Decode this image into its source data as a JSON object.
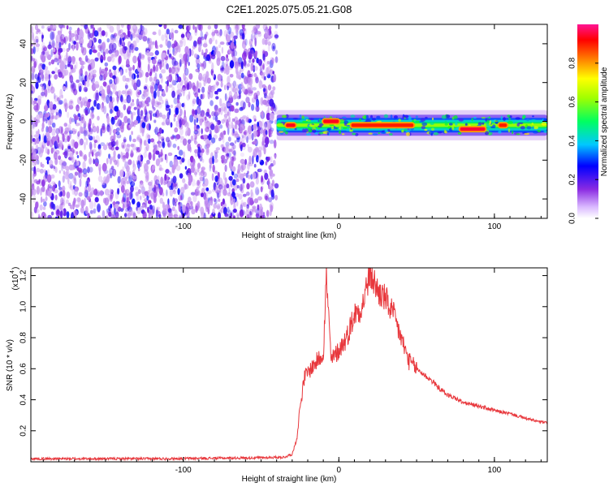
{
  "title": "C2E1.2025.075.05.21.G08",
  "chart_data": [
    {
      "type": "heatmap",
      "xlabel": "Height of straight line (km)",
      "ylabel": "Frequency (Hz)",
      "xlim": [
        -198,
        134
      ],
      "ylim": [
        -50,
        50
      ],
      "xticks": [
        -100,
        0,
        100
      ],
      "xtick_labels": [
        "-100",
        "0",
        "100"
      ],
      "yticks": [
        -40,
        -20,
        0,
        20,
        40
      ],
      "ytick_labels": [
        "-40",
        "-20",
        "0",
        "20",
        "40"
      ],
      "colorbar": {
        "label": "Normalized spectral amplitude",
        "ticks": [
          0.0,
          0.2,
          0.4,
          0.6,
          0.8
        ],
        "tick_labels": [
          "0.0",
          "0.2",
          "0.4",
          "0.6",
          "0.8"
        ],
        "colormap": [
          "#ffffff",
          "#8a2be2",
          "#0000ff",
          "#00c8ff",
          "#00ff00",
          "#ffff00",
          "#ff8000",
          "#ff0000",
          "#ff1493"
        ]
      },
      "noise_region": {
        "x_range": [
          -198,
          -40
        ],
        "y_range": [
          -50,
          50
        ],
        "level": [
          0.05,
          0.25
        ]
      },
      "signal_band": {
        "x_range": [
          -40,
          134
        ],
        "center_freq": -2,
        "halfwidth": 3,
        "level": 0.45
      },
      "hot_spots": [
        {
          "x_range": [
            -34,
            -28
          ],
          "y": -2,
          "level": 0.9
        },
        {
          "x_range": [
            -10,
            0
          ],
          "y": 0,
          "level": 0.9
        },
        {
          "x_range": [
            8,
            48
          ],
          "y": -2,
          "level": 0.85
        },
        {
          "x_range": [
            78,
            94
          ],
          "y": -4,
          "level": 0.92
        },
        {
          "x_range": [
            103,
            108
          ],
          "y": -2,
          "level": 0.85
        }
      ]
    },
    {
      "type": "line",
      "xlabel": "Height of straight line (km)",
      "ylabel": "SNR (10 * v/v)",
      "yscale_note": "(x10",
      "yscale_exp": "4",
      "xlim": [
        -198,
        134
      ],
      "ylim": [
        0,
        1.25
      ],
      "xticks": [
        -100,
        0,
        100
      ],
      "xtick_labels": [
        "-100",
        "0",
        "100"
      ],
      "yticks": [
        0.2,
        0.4,
        0.6,
        0.8,
        1.0,
        1.2
      ],
      "ytick_labels": [
        "0.2",
        "0.4",
        "0.6",
        "0.8",
        "1.0",
        "1.2"
      ],
      "series": [
        {
          "color": "#e8383d",
          "x": [
            -198,
            -120,
            -60,
            -35,
            -30,
            -27,
            -25,
            -22,
            -18,
            -14,
            -10,
            -8,
            -5,
            0,
            5,
            10,
            15,
            20,
            25,
            30,
            35,
            40,
            45,
            50,
            55,
            60,
            65,
            70,
            75,
            80,
            90,
            100,
            110,
            120,
            128,
            134
          ],
          "y": [
            0.02,
            0.02,
            0.025,
            0.03,
            0.05,
            0.15,
            0.35,
            0.55,
            0.6,
            0.65,
            0.7,
            1.2,
            0.65,
            0.72,
            0.8,
            0.95,
            1.0,
            1.22,
            1.1,
            1.05,
            0.95,
            0.8,
            0.65,
            0.6,
            0.56,
            0.52,
            0.47,
            0.43,
            0.41,
            0.38,
            0.36,
            0.33,
            0.31,
            0.28,
            0.26,
            0.25
          ]
        }
      ]
    }
  ]
}
